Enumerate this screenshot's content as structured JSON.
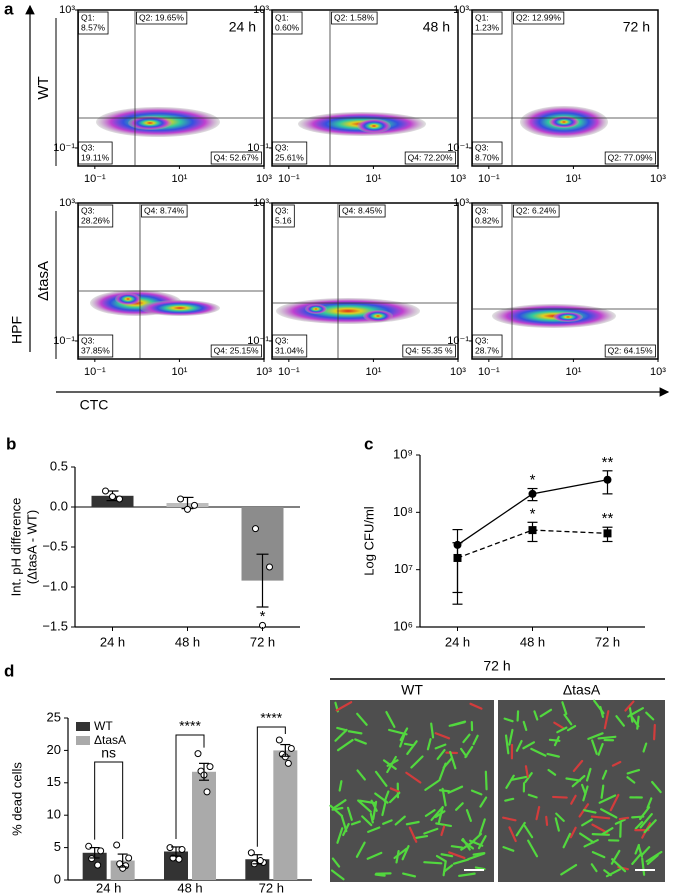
{
  "panel_a": {
    "panel_label": "a",
    "y_axis_label": "HPF",
    "x_axis_label": "CTC",
    "xlim": [
      0.04,
      1000
    ],
    "ylim": [
      0.03,
      1000
    ],
    "xticks": [
      {
        "value": 0.1,
        "label": "10⁻¹"
      },
      {
        "value": 10,
        "label": "10¹"
      },
      {
        "value": 1000,
        "label": "10³"
      }
    ],
    "yticks": [
      {
        "value": 0.1,
        "label": "10⁻¹"
      },
      {
        "value": 1000,
        "label": "10³"
      }
    ],
    "rows": [
      {
        "label": "WT",
        "plots": [
          {
            "title": "24 h",
            "quadrants": [
              [
                "Q1:",
                "8.57%"
              ],
              [
                "Q2: 19.65%"
              ],
              [
                "Q3:",
                "19.11%"
              ],
              [
                "Q4: 52.67%"
              ]
            ]
          },
          {
            "title": "48 h",
            "quadrants": [
              [
                "Q1:",
                "0.60%"
              ],
              [
                "Q2: 1.58%"
              ],
              [
                "Q3:",
                "25.61%"
              ],
              [
                "Q4: 72.20%"
              ]
            ]
          },
          {
            "title": "72 h",
            "quadrants": [
              [
                "Q1:",
                "1.23%"
              ],
              [
                "Q2: 12.99%"
              ],
              [
                "Q3:",
                "8.70%"
              ],
              [
                "Q2: 77.09%"
              ]
            ]
          }
        ]
      },
      {
        "label": "ΔtasA",
        "plots": [
          {
            "quadrants": [
              [
                "Q3:",
                "28.26%"
              ],
              [
                "Q4: 8.74%"
              ],
              [
                "Q3:",
                "37.85%"
              ],
              [
                "Q4: 25.15%"
              ]
            ]
          },
          {
            "quadrants": [
              [
                "Q3:",
                "5.16"
              ],
              [
                "Q4: 8.45%"
              ],
              [
                "Q3:",
                "31.04%"
              ],
              [
                "Q4: 55.35  %"
              ]
            ]
          },
          {
            "quadrants": [
              [
                "Q3:",
                "0.82%"
              ],
              [
                "Q2: 6.24%"
              ],
              [
                "Q3:",
                "28.7%"
              ],
              [
                "Q2: 64.15%"
              ]
            ]
          }
        ]
      }
    ]
  },
  "chart_data": [
    {
      "type": "bar",
      "panel_label": "b",
      "y_axis_label": [
        "Int. pH difference",
        "(ΔtasA - WT)"
      ],
      "categories": [
        "24 h",
        "48 h",
        "72 h"
      ],
      "values": [
        0.14,
        0.05,
        -0.92
      ],
      "errors": [
        0.06,
        0.07,
        0.33
      ],
      "points": [
        [
          0.2,
          0.1,
          0.13
        ],
        [
          0.1,
          0.02,
          -0.03
        ],
        [
          -0.27,
          -0.75,
          -1.48
        ]
      ],
      "colors": [
        "#333333",
        "#bdbdbd",
        "#8c8c8c"
      ],
      "annotations": [
        null,
        null,
        "*"
      ],
      "ylim": [
        -1.5,
        0.5
      ],
      "yticks": [
        0.5,
        {
          "value": 0,
          "label": "0.0"
        },
        {
          "value": -0.5,
          "label": "−0.5"
        },
        {
          "value": -1,
          "label": "−1.0"
        },
        {
          "value": -1.5,
          "label": "−1.5"
        }
      ]
    },
    {
      "type": "line",
      "panel_label": "c",
      "y_axis_label": "Log CFU/ml",
      "log_y": true,
      "categories": [
        "24 h",
        "48 h",
        "72 h"
      ],
      "series": [
        {
          "color": "#000000",
          "line_style": "solid",
          "marker": "circle",
          "values": [
            27000000,
            210000000,
            370000000
          ],
          "errors": [
            23000000,
            50000000,
            160000000
          ],
          "annotations": [
            null,
            "*",
            "**"
          ]
        },
        {
          "color": "#000000",
          "line_style": "dashed",
          "marker": "square",
          "values": [
            16000000,
            49000000,
            43000000
          ],
          "errors": [
            13500000,
            18000000,
            12000000
          ],
          "annotations": [
            null,
            "*",
            "**"
          ]
        }
      ],
      "ylim": [
        1000000,
        1000000000
      ],
      "yticks": [
        {
          "value": 1000000,
          "label": "10⁶"
        },
        {
          "value": 10000000,
          "label": "10⁷"
        },
        {
          "value": 100000000,
          "label": "10⁸"
        },
        {
          "value": 1000000000,
          "label": "10⁹"
        }
      ]
    },
    {
      "type": "grouped_bar",
      "panel_label": "d",
      "y_axis_label": "% dead cells",
      "categories": [
        "24 h",
        "48 h",
        "72 h"
      ],
      "series": [
        {
          "name": "WT",
          "color": "#333333",
          "values": [
            4.2,
            4.4,
            3.2
          ],
          "errors": [
            0.8,
            0.7,
            0.7
          ],
          "points": [
            [
              5.2,
              4.5,
              3.3,
              2.3
            ],
            [
              5.0,
              4.7,
              3.4,
              3.2
            ],
            [
              4.2,
              2.7,
              2.5,
              3.0
            ]
          ]
        },
        {
          "name": "ΔtasA",
          "color": "#aaaaaa",
          "values": [
            3.0,
            16.7,
            20.0
          ],
          "errors": [
            1.0,
            1.3,
            0.9
          ],
          "points": [
            [
              5.4,
              3.4,
              2.5,
              2.2,
              1.8
            ],
            [
              19.5,
              17.5,
              16.8,
              13.6,
              16.2
            ],
            [
              21.6,
              20.3,
              19.4,
              18.0,
              19.0
            ]
          ]
        }
      ],
      "significance": [
        "ns",
        "****",
        "****"
      ],
      "ylim": [
        0,
        25
      ],
      "yticks": [
        0,
        5,
        10,
        15,
        20,
        25
      ],
      "legend": "top-left"
    }
  ],
  "panel_d_images": {
    "header": "72 h",
    "labels": [
      "WT",
      "ΔtasA"
    ]
  }
}
